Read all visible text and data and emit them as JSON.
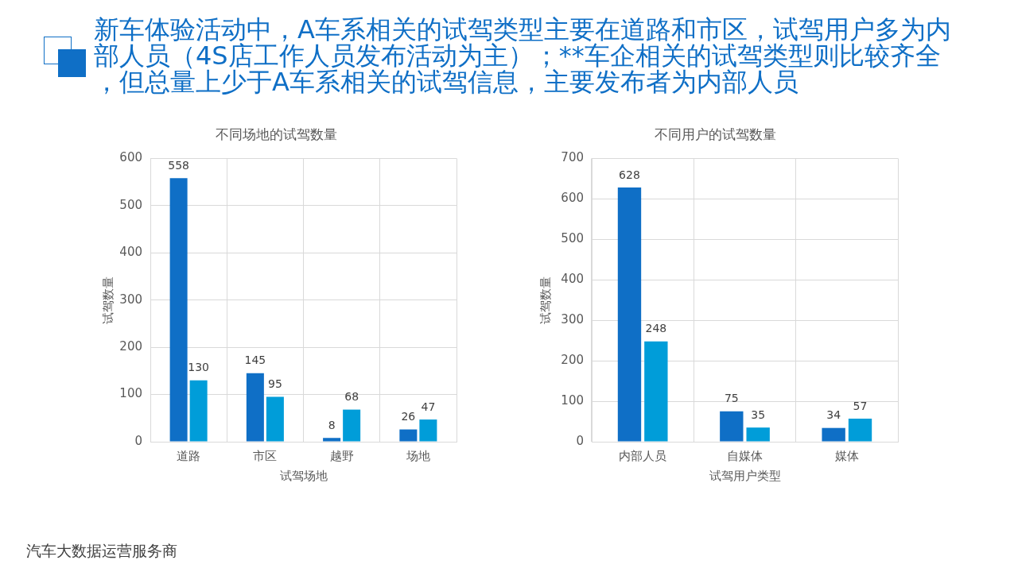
{
  "chart_data": [
    {
      "type": "other",
      "title": "新车体验活动中，A车系相关的试驾类型主要在道路和市区，试驾用户多为内部人员（4S店工作人员发布活动为主）；**车企相关的试驾类型则比较齐全，但总量上少于A车系相关的试驾信息，主要发布者为内部人员",
      "annotations": [
        "汽车大数据运营服务商"
      ]
    },
    {
      "type": "bar",
      "title": "不同场地的试驾数量",
      "xlabel": "试驾场地",
      "ylabel": "试驾数量",
      "categories": [
        "道路",
        "市区",
        "越野",
        "场地"
      ],
      "series": [
        {
          "color": "#0f6fc6",
          "values": [
            558,
            145,
            8,
            26
          ]
        },
        {
          "color": "#009dd9",
          "values": [
            130,
            95,
            68,
            47
          ]
        }
      ],
      "ylim": [
        0,
        600
      ],
      "yticks": [
        0,
        100,
        200,
        300,
        400,
        500,
        600
      ],
      "grid": true,
      "data_labels": true
    },
    {
      "type": "bar",
      "title": "不同用户的试驾数量",
      "xlabel": "试驾用户类型",
      "ylabel": "试驾数量",
      "categories": [
        "内部人员",
        "自媒体",
        "媒体"
      ],
      "series": [
        {
          "color": "#0f6fc6",
          "values": [
            628,
            75,
            34
          ]
        },
        {
          "color": "#009dd9",
          "values": [
            248,
            35,
            57
          ]
        }
      ],
      "ylim": [
        0,
        700
      ],
      "yticks": [
        0,
        100,
        200,
        300,
        400,
        500,
        600,
        700
      ],
      "grid": true,
      "data_labels": true
    }
  ]
}
